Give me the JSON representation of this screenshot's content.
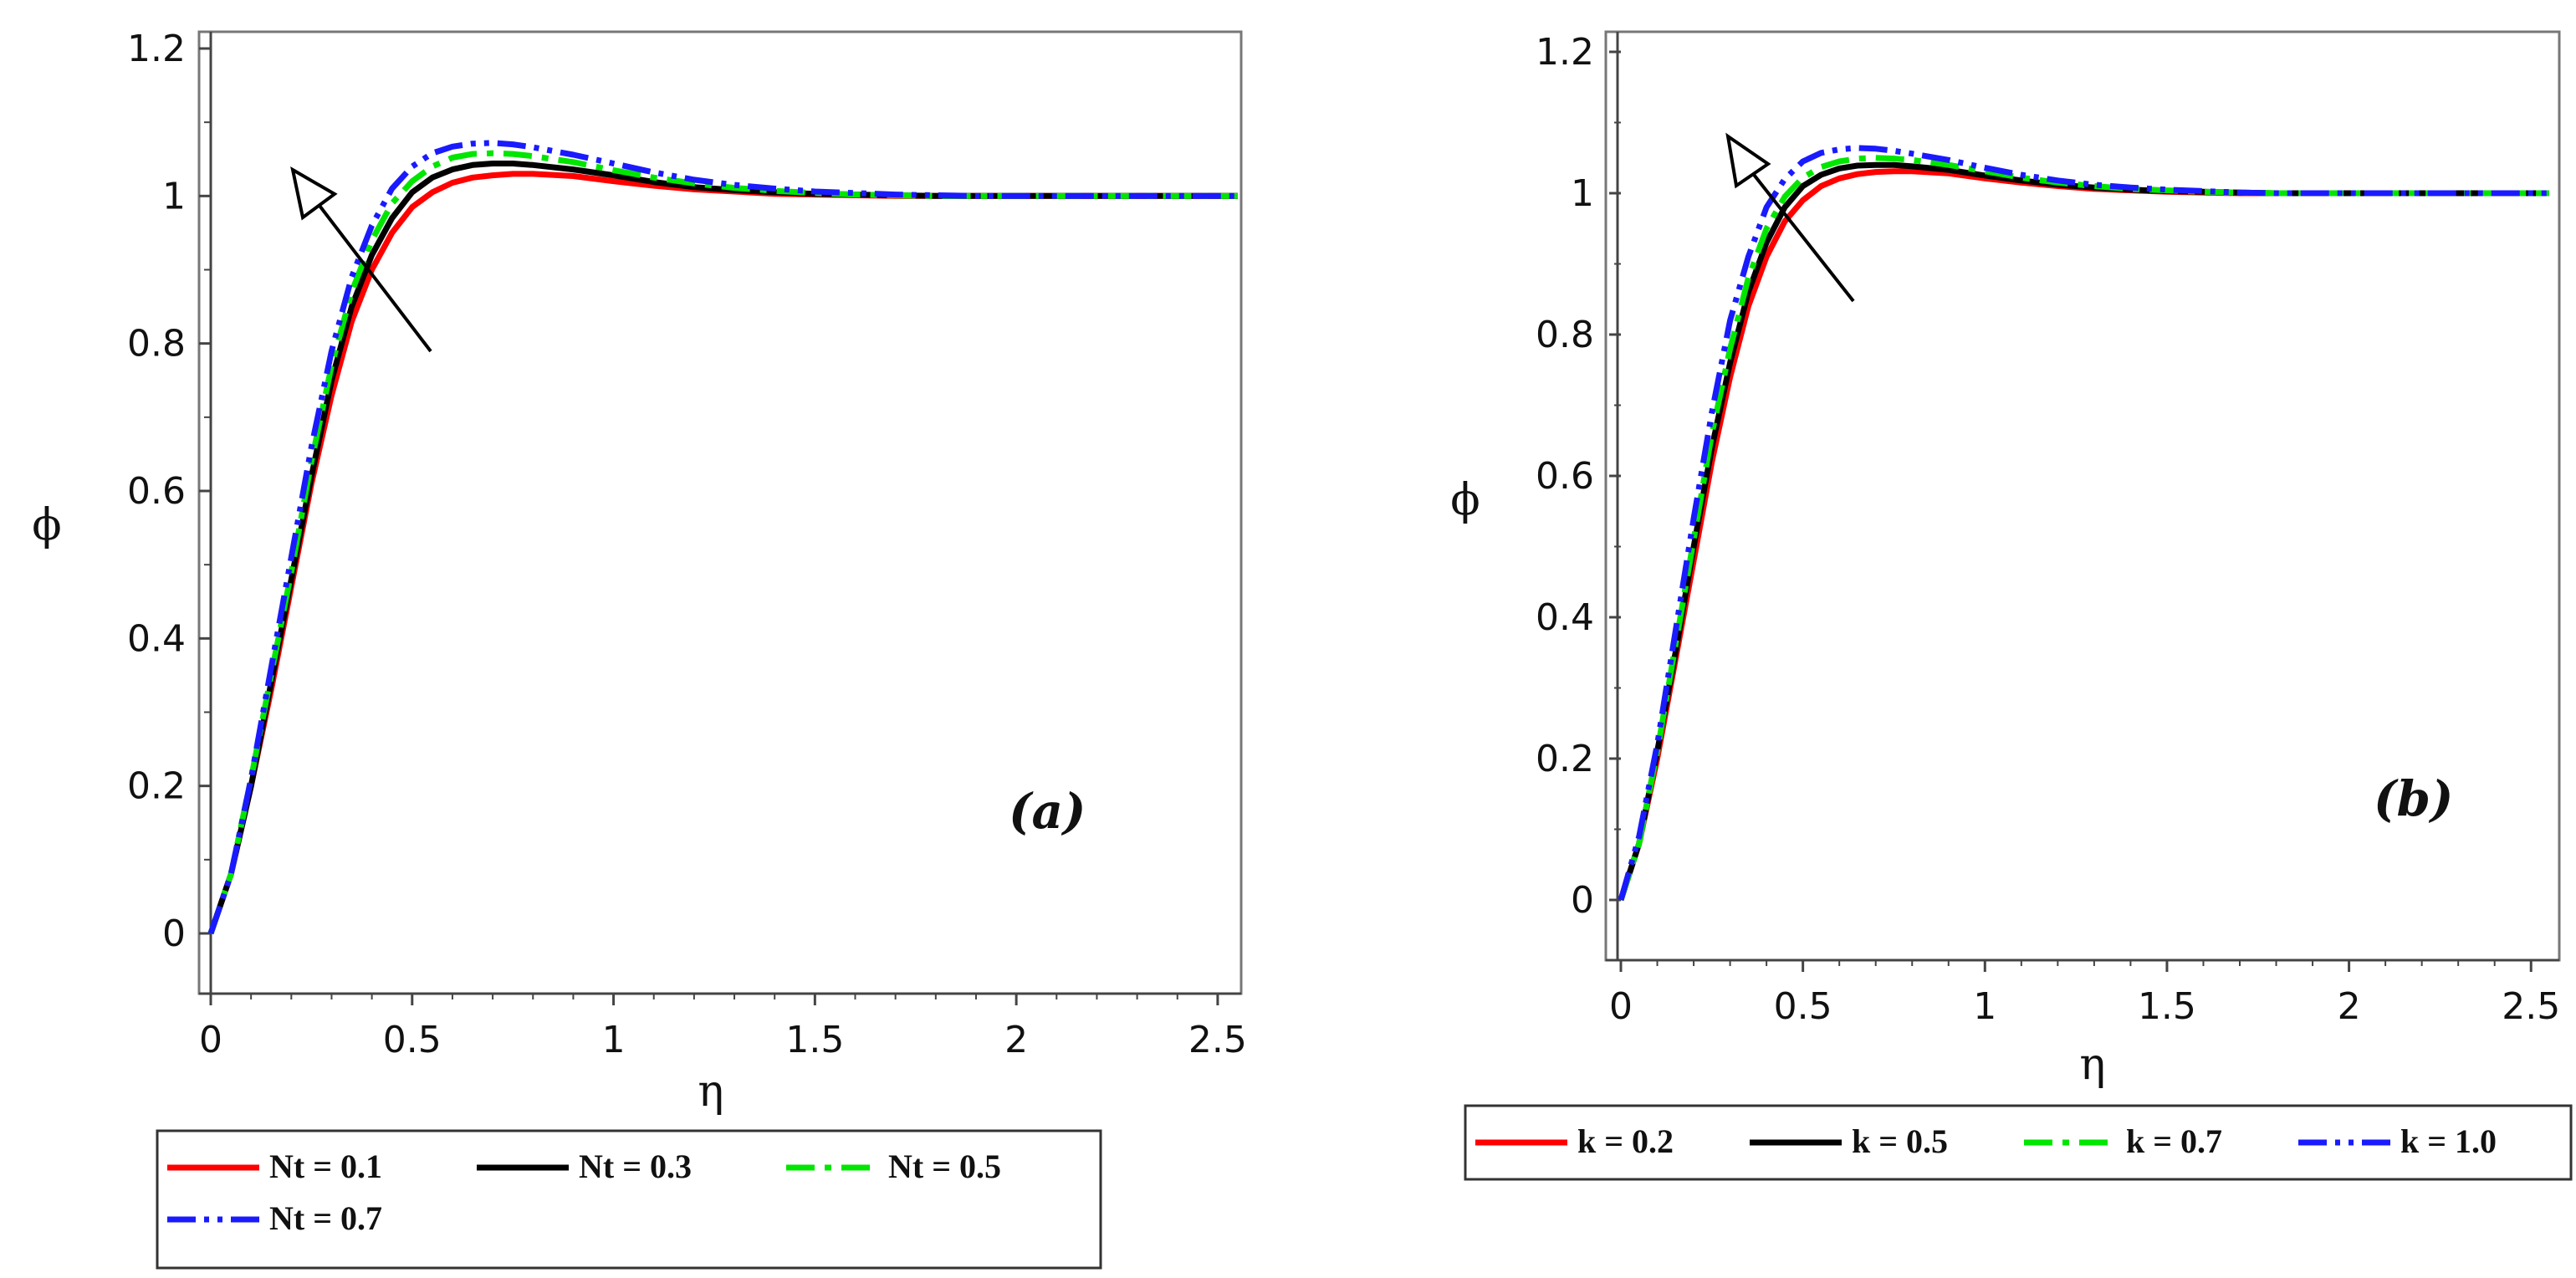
{
  "chart_data": [
    {
      "type": "line",
      "panel_label": "(a)",
      "xlabel": "η",
      "ylabel": "ϕ",
      "xlim": [
        0,
        2.55
      ],
      "ylim": [
        -0.06,
        1.2
      ],
      "xticks": [
        "0",
        "0.5",
        "1",
        "1.5",
        "2",
        "2.5"
      ],
      "yticks": [
        "0",
        "0.2",
        "0.4",
        "0.6",
        "0.8",
        "1",
        "1.2"
      ],
      "x": [
        0,
        0.05,
        0.1,
        0.15,
        0.2,
        0.25,
        0.3,
        0.35,
        0.4,
        0.45,
        0.5,
        0.55,
        0.6,
        0.65,
        0.7,
        0.75,
        0.8,
        0.9,
        1.0,
        1.1,
        1.2,
        1.3,
        1.4,
        1.5,
        1.6,
        1.7,
        1.8,
        1.9,
        2.0,
        2.1,
        2.2,
        2.3,
        2.4,
        2.55
      ],
      "series": [
        {
          "name": "Nt = 0.1",
          "color": "#ff0000",
          "dash": "solid",
          "values": [
            0,
            0.08,
            0.2,
            0.33,
            0.47,
            0.61,
            0.73,
            0.83,
            0.9,
            0.95,
            0.985,
            1.005,
            1.018,
            1.025,
            1.028,
            1.03,
            1.03,
            1.027,
            1.02,
            1.014,
            1.009,
            1.006,
            1.003,
            1.002,
            1.001,
            1.0,
            1.0,
            1.0,
            1.0,
            1.0,
            1.0,
            1.0,
            1.0,
            1.0
          ]
        },
        {
          "name": "Nt = 0.3",
          "color": "#000000",
          "dash": "solid",
          "values": [
            0,
            0.08,
            0.2,
            0.34,
            0.48,
            0.62,
            0.75,
            0.85,
            0.92,
            0.97,
            1.005,
            1.025,
            1.036,
            1.042,
            1.044,
            1.044,
            1.042,
            1.036,
            1.028,
            1.019,
            1.012,
            1.008,
            1.005,
            1.003,
            1.002,
            1.001,
            1.0,
            1.0,
            1.0,
            1.0,
            1.0,
            1.0,
            1.0,
            1.0
          ]
        },
        {
          "name": "Nt = 0.5",
          "color": "#00e600",
          "dash": "dashdot",
          "values": [
            0,
            0.08,
            0.21,
            0.35,
            0.49,
            0.64,
            0.77,
            0.87,
            0.94,
            0.99,
            1.02,
            1.04,
            1.052,
            1.057,
            1.058,
            1.057,
            1.054,
            1.046,
            1.035,
            1.025,
            1.017,
            1.011,
            1.007,
            1.004,
            1.002,
            1.001,
            1.0,
            1.0,
            1.0,
            1.0,
            1.0,
            1.0,
            1.0,
            1.0
          ]
        },
        {
          "name": "Nt = 0.7",
          "color": "#1a1aff",
          "dash": "dashdotdot",
          "values": [
            0,
            0.08,
            0.21,
            0.36,
            0.51,
            0.66,
            0.79,
            0.89,
            0.96,
            1.01,
            1.04,
            1.058,
            1.067,
            1.071,
            1.072,
            1.07,
            1.066,
            1.056,
            1.044,
            1.032,
            1.022,
            1.015,
            1.01,
            1.006,
            1.004,
            1.002,
            1.001,
            1.0,
            1.0,
            1.0,
            1.0,
            1.0,
            1.0,
            1.0
          ]
        }
      ],
      "legend": [
        "Nt = 0.1",
        "Nt = 0.3",
        "Nt = 0.5",
        "Nt = 0.7"
      ],
      "legend_position": "bottom"
    },
    {
      "type": "line",
      "panel_label": "(b)",
      "xlabel": "η",
      "ylabel": "ϕ",
      "xlim": [
        0,
        2.55
      ],
      "ylim": [
        -0.06,
        1.2
      ],
      "xticks": [
        "0",
        "0.5",
        "1",
        "1.5",
        "2",
        "2.5"
      ],
      "yticks": [
        "0",
        "0.2",
        "0.4",
        "0.6",
        "0.8",
        "1",
        "1.2"
      ],
      "x": [
        0,
        0.05,
        0.1,
        0.15,
        0.2,
        0.25,
        0.3,
        0.35,
        0.4,
        0.45,
        0.5,
        0.55,
        0.6,
        0.65,
        0.7,
        0.75,
        0.8,
        0.9,
        1.0,
        1.1,
        1.2,
        1.3,
        1.4,
        1.5,
        1.6,
        1.7,
        1.8,
        1.9,
        2.0,
        2.1,
        2.2,
        2.3,
        2.4,
        2.55
      ],
      "series": [
        {
          "name": "k = 0.2",
          "color": "#ff0000",
          "dash": "solid",
          "values": [
            0,
            0.08,
            0.2,
            0.34,
            0.48,
            0.62,
            0.74,
            0.84,
            0.91,
            0.96,
            0.99,
            1.01,
            1.021,
            1.027,
            1.03,
            1.031,
            1.031,
            1.028,
            1.021,
            1.015,
            1.01,
            1.006,
            1.004,
            1.002,
            1.001,
            1.0,
            1.0,
            1.0,
            1.0,
            1.0,
            1.0,
            1.0,
            1.0,
            1.0
          ]
        },
        {
          "name": "k = 0.5",
          "color": "#000000",
          "dash": "solid",
          "values": [
            0,
            0.08,
            0.21,
            0.35,
            0.5,
            0.64,
            0.76,
            0.86,
            0.93,
            0.98,
            1.01,
            1.026,
            1.035,
            1.039,
            1.04,
            1.04,
            1.038,
            1.033,
            1.025,
            1.018,
            1.012,
            1.008,
            1.005,
            1.003,
            1.002,
            1.001,
            1.0,
            1.0,
            1.0,
            1.0,
            1.0,
            1.0,
            1.0,
            1.0
          ]
        },
        {
          "name": "k = 0.7",
          "color": "#00e600",
          "dash": "dashdot",
          "values": [
            0,
            0.08,
            0.21,
            0.36,
            0.51,
            0.66,
            0.78,
            0.88,
            0.95,
            0.995,
            1.022,
            1.037,
            1.045,
            1.049,
            1.05,
            1.049,
            1.047,
            1.04,
            1.031,
            1.022,
            1.015,
            1.01,
            1.006,
            1.004,
            1.002,
            1.001,
            1.0,
            1.0,
            1.0,
            1.0,
            1.0,
            1.0,
            1.0,
            1.0
          ]
        },
        {
          "name": "k = 1.0",
          "color": "#1a1aff",
          "dash": "dashdotdot",
          "values": [
            0,
            0.09,
            0.22,
            0.38,
            0.54,
            0.69,
            0.82,
            0.91,
            0.98,
            1.02,
            1.045,
            1.057,
            1.062,
            1.064,
            1.063,
            1.06,
            1.056,
            1.047,
            1.036,
            1.026,
            1.018,
            1.012,
            1.008,
            1.005,
            1.003,
            1.001,
            1.0,
            1.0,
            1.0,
            1.0,
            1.0,
            1.0,
            1.0,
            1.0
          ]
        }
      ],
      "legend": [
        "k = 0.2",
        "k = 0.5",
        "k = 0.7",
        "k = 1.0"
      ],
      "legend_position": "bottom"
    }
  ]
}
